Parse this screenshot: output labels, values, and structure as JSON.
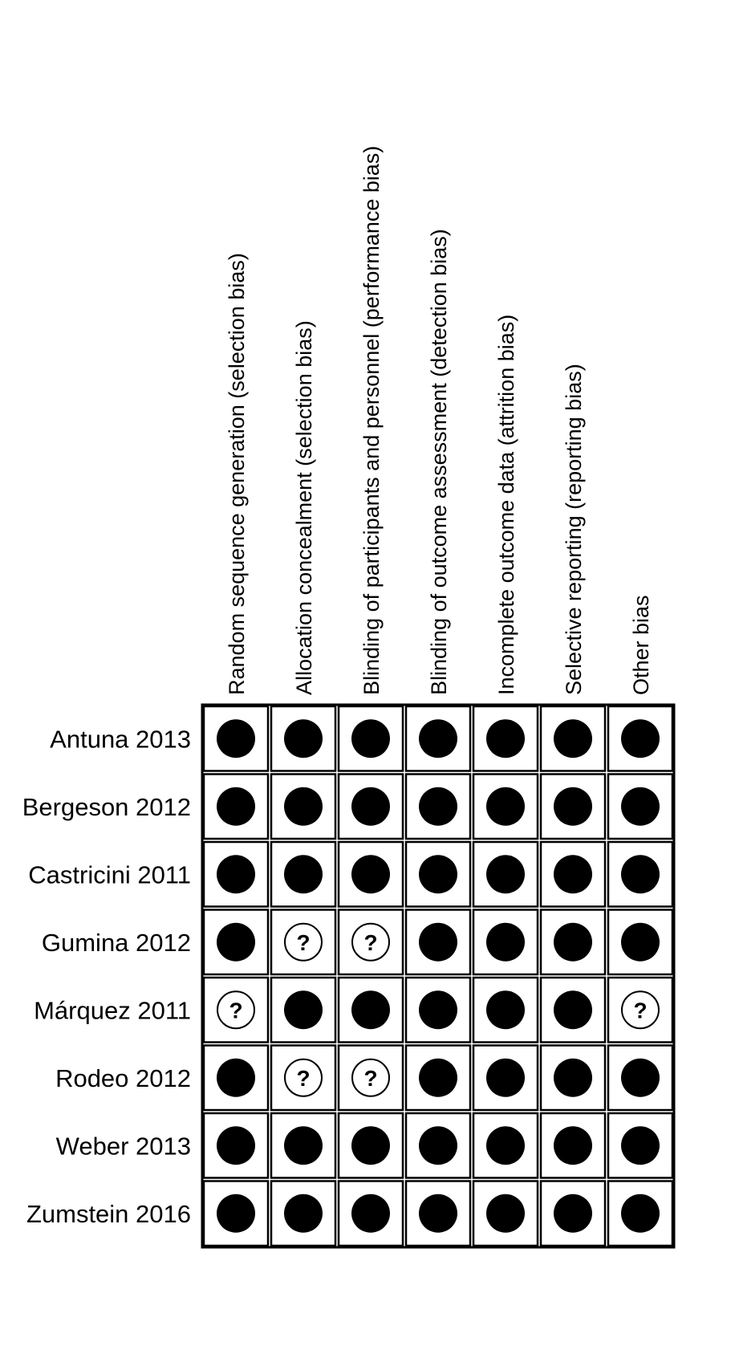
{
  "colors": {
    "low": "#000000",
    "unclear_fill": "#ffffff",
    "border": "#000000"
  },
  "domains": [
    "Random sequence generation (selection bias)",
    "Allocation concealment (selection bias)",
    "Blinding of participants and personnel (performance bias)",
    "Blinding of outcome assessment (detection bias)",
    "Incomplete outcome data (attrition bias)",
    "Selective reporting (reporting bias)",
    "Other bias"
  ],
  "studies": [
    {
      "name": "Antuna 2013",
      "judgements": [
        "low",
        "low",
        "low",
        "low",
        "low",
        "low",
        "low"
      ]
    },
    {
      "name": "Bergeson 2012",
      "judgements": [
        "low",
        "low",
        "low",
        "low",
        "low",
        "low",
        "low"
      ]
    },
    {
      "name": "Castricini 2011",
      "judgements": [
        "low",
        "low",
        "low",
        "low",
        "low",
        "low",
        "low"
      ]
    },
    {
      "name": "Gumina 2012",
      "judgements": [
        "low",
        "unclear",
        "unclear",
        "low",
        "low",
        "low",
        "low"
      ]
    },
    {
      "name": "Márquez 2011",
      "judgements": [
        "unclear",
        "low",
        "low",
        "low",
        "low",
        "low",
        "unclear"
      ]
    },
    {
      "name": "Rodeo 2012",
      "judgements": [
        "low",
        "unclear",
        "unclear",
        "low",
        "low",
        "low",
        "low"
      ]
    },
    {
      "name": "Weber 2013",
      "judgements": [
        "low",
        "low",
        "low",
        "low",
        "low",
        "low",
        "low"
      ]
    },
    {
      "name": "Zumstein 2016",
      "judgements": [
        "low",
        "low",
        "low",
        "low",
        "low",
        "low",
        "low"
      ]
    }
  ],
  "unclear_symbol": "?"
}
